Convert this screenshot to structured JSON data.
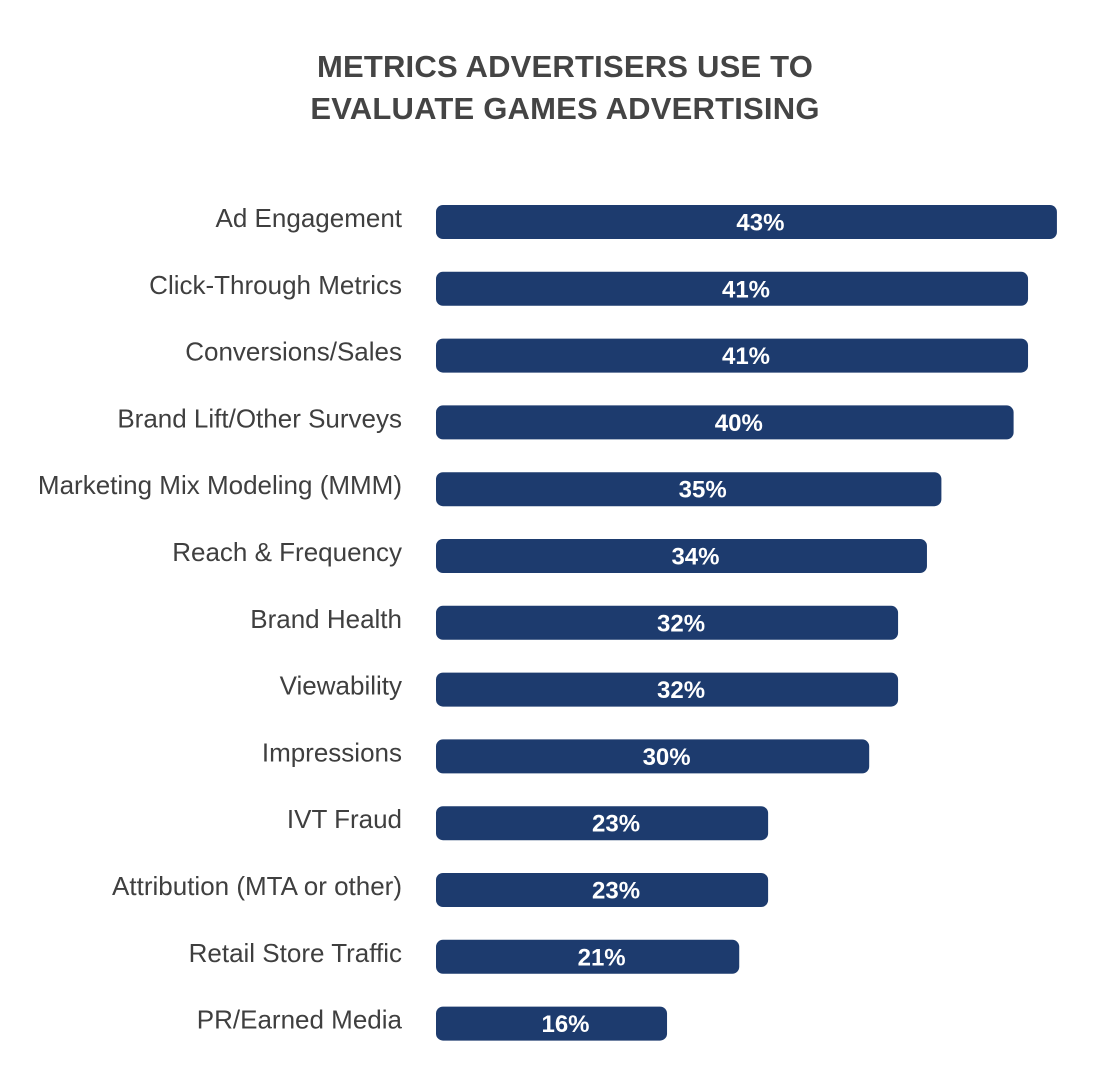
{
  "chart_data": {
    "type": "bar",
    "orientation": "horizontal",
    "title": [
      "METRICS ADVERTISERS USE TO",
      "EVALUATE GAMES ADVERTISING"
    ],
    "categories": [
      "Ad Engagement",
      "Click-Through Metrics",
      "Conversions/Sales",
      "Brand Lift/Other Surveys",
      "Marketing Mix Modeling (MMM)",
      "Reach & Frequency",
      "Brand Health",
      "Viewability",
      "Impressions",
      "IVT Fraud",
      "Attribution (MTA or other)",
      "Retail Store Traffic",
      "PR/Earned Media"
    ],
    "values": [
      43,
      41,
      41,
      40,
      35,
      34,
      32,
      32,
      30,
      23,
      23,
      21,
      16
    ],
    "value_labels": [
      "43%",
      "41%",
      "41%",
      "40%",
      "35%",
      "34%",
      "32%",
      "32%",
      "30%",
      "23%",
      "23%",
      "21%",
      "16%"
    ],
    "unit": "%",
    "grid": false,
    "legend": "none",
    "colors": {
      "bar": "#1d3b6e",
      "value_label": "#ffffff",
      "category_label": "#3f3f3f",
      "title": "#444444"
    }
  }
}
